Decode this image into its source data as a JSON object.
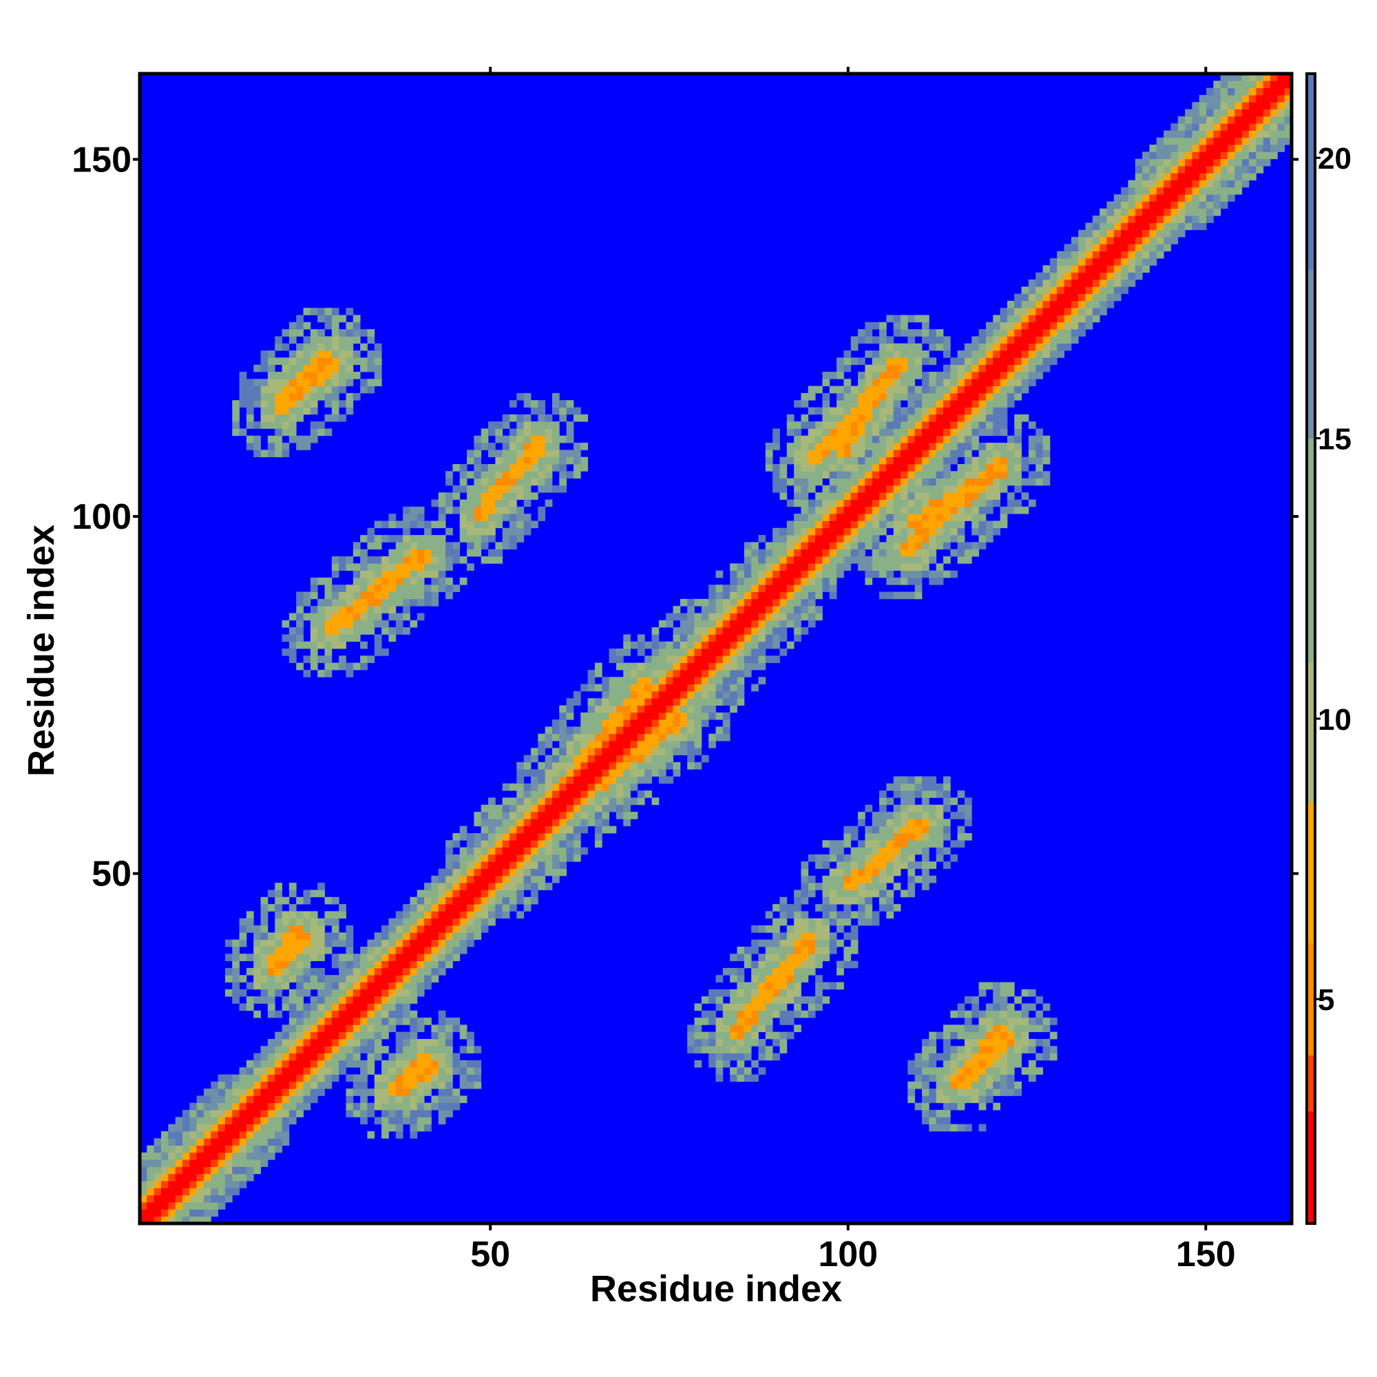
{
  "chart_data": {
    "type": "heatmap",
    "title": "",
    "xlabel": "Residue index",
    "ylabel": "Residue index",
    "xlim": [
      1,
      162
    ],
    "ylim": [
      1,
      162
    ],
    "x_ticks": [
      50,
      100,
      150
    ],
    "y_ticks": [
      50,
      100,
      150
    ],
    "x_tick_labels": [
      "50",
      "100",
      "150"
    ],
    "y_tick_labels": [
      "50",
      "100",
      "150"
    ],
    "colorbar": {
      "range": [
        1,
        21.5
      ],
      "ticks": [
        5,
        10,
        15,
        20
      ],
      "tick_labels": [
        "5",
        "10",
        "15",
        "20"
      ],
      "bands": [
        {
          "from": 1,
          "to": 3,
          "color": "#ff0000"
        },
        {
          "from": 3,
          "to": 4,
          "color": "#ff4000"
        },
        {
          "from": 4,
          "to": 6,
          "color": "#ff8c00"
        },
        {
          "from": 6,
          "to": 8.5,
          "color": "#ffa500"
        },
        {
          "from": 8.5,
          "to": 11,
          "color": "#a8b878"
        },
        {
          "from": 11,
          "to": 15,
          "color": "#8ab088"
        },
        {
          "from": 15,
          "to": 18,
          "color": "#6e90a8"
        },
        {
          "from": 18,
          "to": 21.5,
          "color": "#5a7ab8"
        }
      ],
      "background_color": "#0000ff"
    },
    "matrix_description": {
      "residues": 162,
      "diagonal_band": "values near 1-4 along i=j",
      "contact_segments": [
        {
          "x": [
            20,
            27
          ],
          "y": [
            116,
            123
          ]
        },
        {
          "x": [
            49,
            57
          ],
          "y": [
            102,
            110
          ]
        },
        {
          "x": [
            27,
            40
          ],
          "y": [
            84,
            95
          ]
        },
        {
          "x": [
            77,
            92
          ],
          "y": [
            75,
            92
          ]
        },
        {
          "x": [
            99,
            107
          ],
          "y": [
            109,
            122
          ]
        },
        {
          "x": [
            108,
            122
          ],
          "y": [
            95,
            108
          ]
        },
        {
          "x": [
            51,
            66
          ],
          "y": [
            50,
            65
          ]
        },
        {
          "x": [
            100,
            111
          ],
          "y": [
            48,
            57
          ]
        },
        {
          "x": [
            85,
            95
          ],
          "y": [
            29,
            41
          ]
        },
        {
          "x": [
            19,
            24
          ],
          "y": [
            36,
            41
          ]
        },
        {
          "x": [
            37,
            42
          ],
          "y": [
            19,
            23
          ]
        },
        {
          "x": [
            115,
            122
          ],
          "y": [
            20,
            28
          ]
        },
        {
          "x": [
            60,
            72
          ],
          "y": [
            62,
            77
          ]
        }
      ]
    }
  }
}
